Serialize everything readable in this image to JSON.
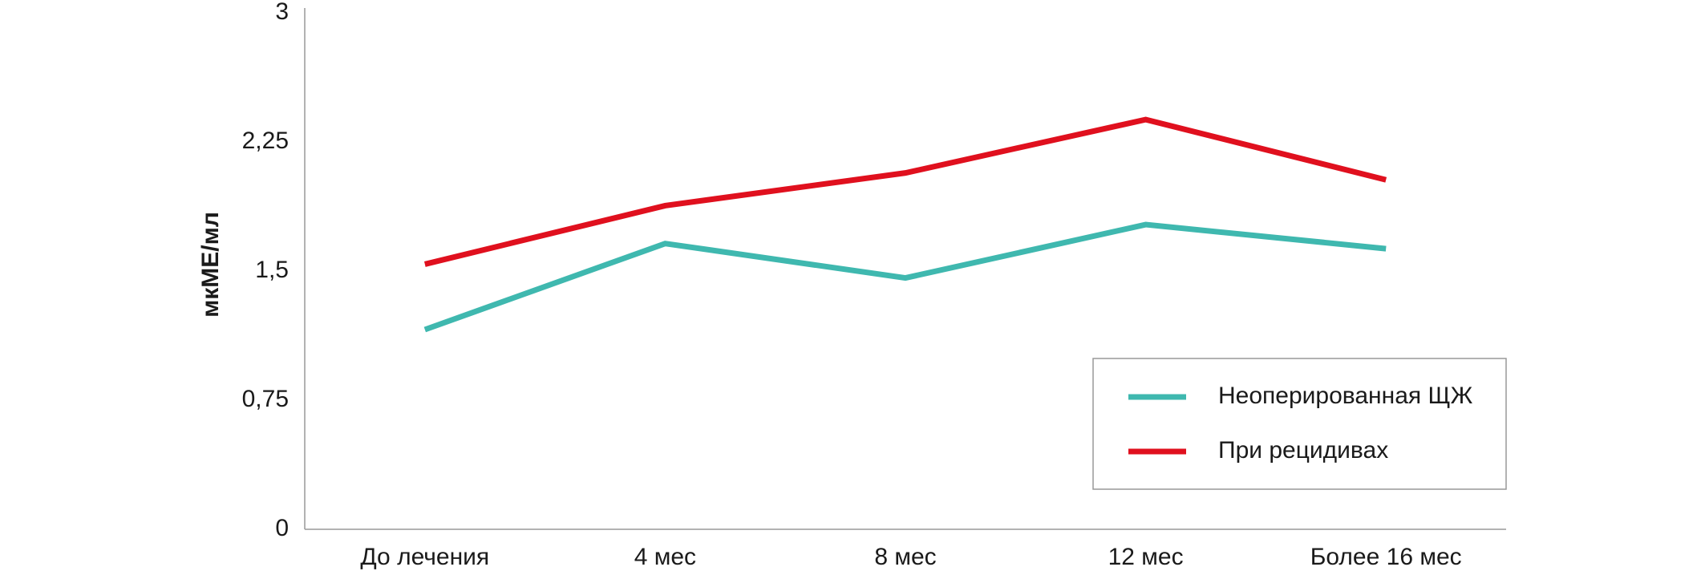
{
  "chart_data": {
    "type": "line",
    "y_label": "мкМЕ/мл",
    "categories": [
      "До лечения",
      "4 мес",
      "8 мес",
      "12 мес",
      "Более 16 мес"
    ],
    "series": [
      {
        "name": "Неоперированная ЩЖ",
        "color": "#3fb8af",
        "values": [
          1.16,
          1.66,
          1.46,
          1.77,
          1.63
        ]
      },
      {
        "name": "При рецидивах",
        "color": "#e0101e",
        "values": [
          1.54,
          1.88,
          2.07,
          2.38,
          2.03
        ]
      }
    ],
    "ylim": [
      0,
      3
    ],
    "yticks": [
      0,
      {
        "value": 0.75,
        "label": "0,75"
      },
      {
        "value": 1.5,
        "label": "1,5"
      },
      {
        "value": 2.25,
        "label": "2,25"
      },
      3
    ],
    "grid": false,
    "legend": "lower-right"
  }
}
